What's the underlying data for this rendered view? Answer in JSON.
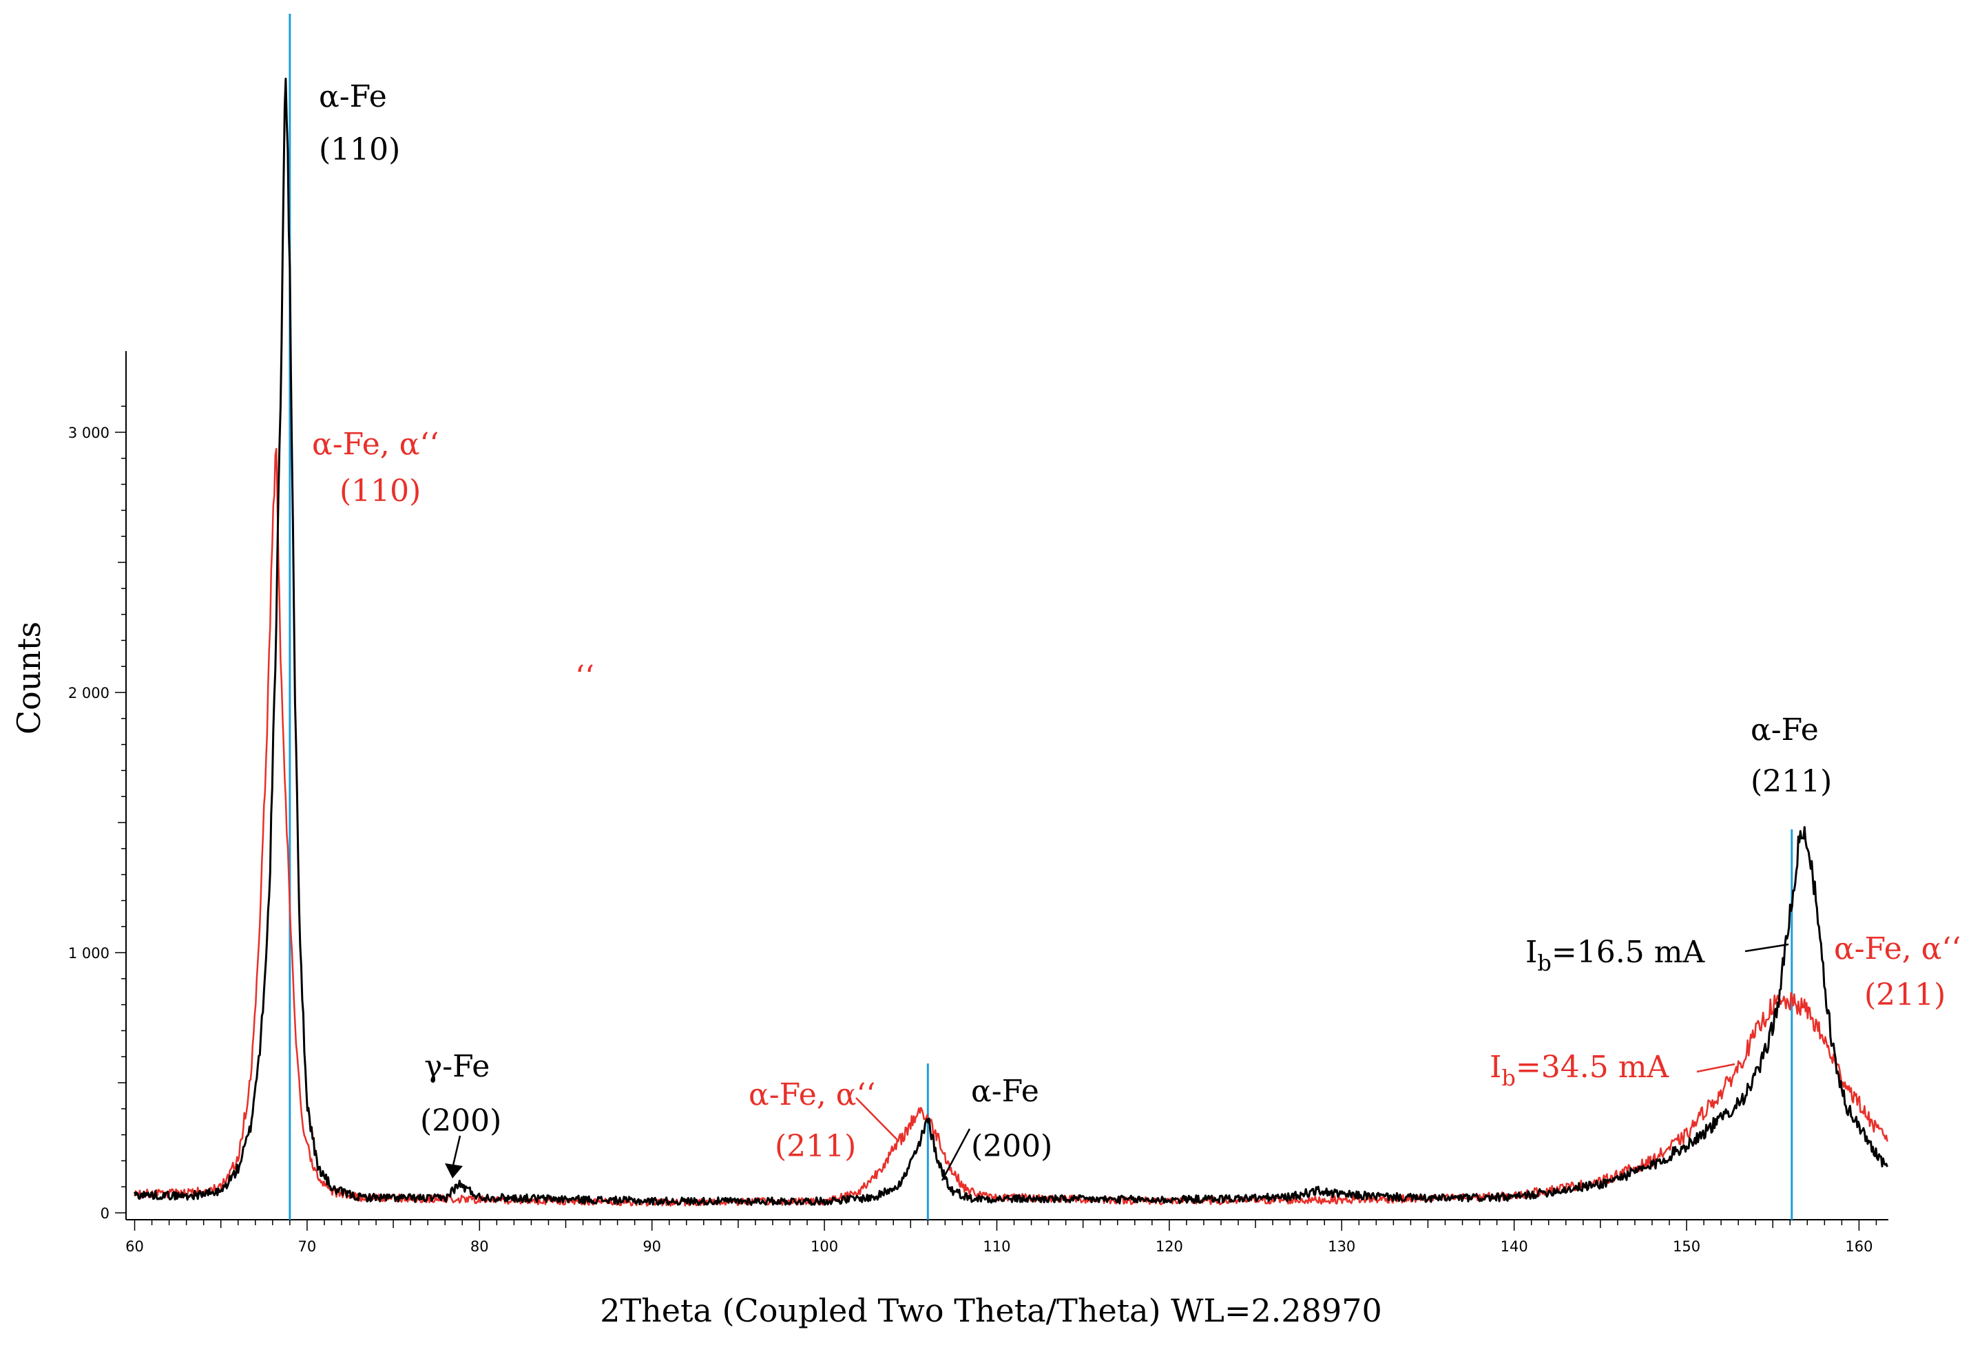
{
  "chart_data": {
    "type": "line",
    "xlabel": "2Theta (Coupled Two Theta/Theta) WL=2.28970",
    "ylabel": "Counts",
    "xlim": [
      59.5,
      161.7
    ],
    "ylim": [
      0,
      3200
    ],
    "x_ticks": [
      60,
      70,
      80,
      90,
      100,
      110,
      120,
      130,
      140,
      150,
      160
    ],
    "y_ticks": [
      0,
      1000,
      2000,
      3000
    ],
    "y_tick_labels": [
      "0",
      "1 000",
      "2 000",
      "3 000"
    ],
    "grid": false,
    "colors": {
      "black": "#000000",
      "red": "#e8302a",
      "blue": "#1e9fdc"
    },
    "reference_lines_x": [
      69.0,
      106.0,
      156.1
    ],
    "series": [
      {
        "name": "Ib=16.5 mA",
        "color": "#000000",
        "baseline": [
          [
            60,
            70
          ],
          [
            63,
            65
          ],
          [
            65,
            80
          ],
          [
            66,
            170
          ],
          [
            66.7,
            320
          ],
          [
            67.3,
            650
          ],
          [
            67.8,
            1200
          ],
          [
            68.2,
            2200
          ],
          [
            68.5,
            3300
          ],
          [
            68.75,
            4450
          ],
          [
            69.0,
            3600
          ],
          [
            69.3,
            2000
          ],
          [
            69.6,
            1000
          ],
          [
            70.0,
            420
          ],
          [
            70.6,
            180
          ],
          [
            71.5,
            90
          ],
          [
            73,
            60
          ],
          [
            78,
            55
          ],
          [
            78.8,
            110
          ],
          [
            79.3,
            90
          ],
          [
            80,
            60
          ],
          [
            90,
            45
          ],
          [
            100,
            45
          ],
          [
            103,
            60
          ],
          [
            104.5,
            120
          ],
          [
            105.5,
            260
          ],
          [
            106.0,
            360
          ],
          [
            106.6,
            200
          ],
          [
            107.3,
            90
          ],
          [
            108.5,
            55
          ],
          [
            120,
            50
          ],
          [
            127,
            60
          ],
          [
            128.5,
            85
          ],
          [
            130,
            70
          ],
          [
            135,
            55
          ],
          [
            140,
            60
          ],
          [
            145,
            110
          ],
          [
            148,
            180
          ],
          [
            150,
            260
          ],
          [
            152,
            360
          ],
          [
            153.5,
            460
          ],
          [
            154.5,
            600
          ],
          [
            155.3,
            800
          ],
          [
            156.0,
            1150
          ],
          [
            156.6,
            1460
          ],
          [
            157.0,
            1440
          ],
          [
            157.5,
            1200
          ],
          [
            158.0,
            870
          ],
          [
            158.6,
            580
          ],
          [
            159.2,
            420
          ],
          [
            160,
            330
          ],
          [
            161,
            230
          ],
          [
            161.7,
            170
          ]
        ]
      },
      {
        "name": "Ib=34.5 mA",
        "color": "#e8302a",
        "baseline": [
          [
            60,
            75
          ],
          [
            63,
            75
          ],
          [
            65,
            95
          ],
          [
            66,
            210
          ],
          [
            66.7,
            500
          ],
          [
            67.2,
            1000
          ],
          [
            67.6,
            1700
          ],
          [
            68.0,
            2600
          ],
          [
            68.2,
            2950
          ],
          [
            68.45,
            2200
          ],
          [
            68.8,
            1500
          ],
          [
            69.3,
            700
          ],
          [
            69.8,
            300
          ],
          [
            70.5,
            150
          ],
          [
            71.5,
            80
          ],
          [
            73,
            60
          ],
          [
            80,
            50
          ],
          [
            90,
            40
          ],
          [
            100,
            45
          ],
          [
            102,
            80
          ],
          [
            103,
            150
          ],
          [
            104,
            240
          ],
          [
            105,
            340
          ],
          [
            105.5,
            400
          ],
          [
            106,
            360
          ],
          [
            106.6,
            290
          ],
          [
            107.3,
            170
          ],
          [
            108.2,
            90
          ],
          [
            109.5,
            60
          ],
          [
            120,
            45
          ],
          [
            130,
            50
          ],
          [
            135,
            55
          ],
          [
            140,
            65
          ],
          [
            145,
            120
          ],
          [
            148,
            200
          ],
          [
            150,
            300
          ],
          [
            151,
            390
          ],
          [
            152,
            460
          ],
          [
            153,
            560
          ],
          [
            154,
            690
          ],
          [
            155,
            800
          ],
          [
            156,
            810
          ],
          [
            157,
            780
          ],
          [
            158,
            660
          ],
          [
            159,
            520
          ],
          [
            160,
            420
          ],
          [
            161,
            320
          ],
          [
            161.7,
            290
          ]
        ]
      }
    ],
    "annotations": [
      {
        "id": "a-fe-110-black-l1",
        "text": "α-Fe",
        "color": "black"
      },
      {
        "id": "a-fe-110-black-l2",
        "text": "(110)",
        "color": "black"
      },
      {
        "id": "a-fe-110-red-l1",
        "text": "α-Fe, α‘‘",
        "color": "red"
      },
      {
        "id": "a-fe-110-red-l2",
        "text": "(110)",
        "color": "red"
      },
      {
        "id": "stray-mark",
        "text": "‘‘",
        "color": "red"
      },
      {
        "id": "g-fe-200-l1",
        "text": "γ-Fe",
        "color": "black"
      },
      {
        "id": "g-fe-200-l2",
        "text": "(200)",
        "color": "black"
      },
      {
        "id": "a-fe-211-red-mid-l1",
        "text": "α-Fe, α‘‘",
        "color": "red"
      },
      {
        "id": "a-fe-211-red-mid-l2",
        "text": "(211)",
        "color": "red"
      },
      {
        "id": "a-fe-200-l1",
        "text": "α-Fe",
        "color": "black"
      },
      {
        "id": "a-fe-200-l2",
        "text": "(200)",
        "color": "black"
      },
      {
        "id": "a-fe-211-black-l1",
        "text": "α-Fe",
        "color": "black"
      },
      {
        "id": "a-fe-211-black-l2",
        "text": "(211)",
        "color": "black"
      },
      {
        "id": "ib-165-main",
        "text": "I",
        "sub": "b",
        "rest": "=16.5 mA",
        "color": "black"
      },
      {
        "id": "a-fe-211-red-right-l1",
        "text": "α-Fe, α‘‘",
        "color": "red"
      },
      {
        "id": "a-fe-211-red-right-l2",
        "text": "(211)",
        "color": "red"
      },
      {
        "id": "ib-345-main",
        "text": "I",
        "sub": "b",
        "rest": "=34.5 mA",
        "color": "red"
      }
    ]
  }
}
